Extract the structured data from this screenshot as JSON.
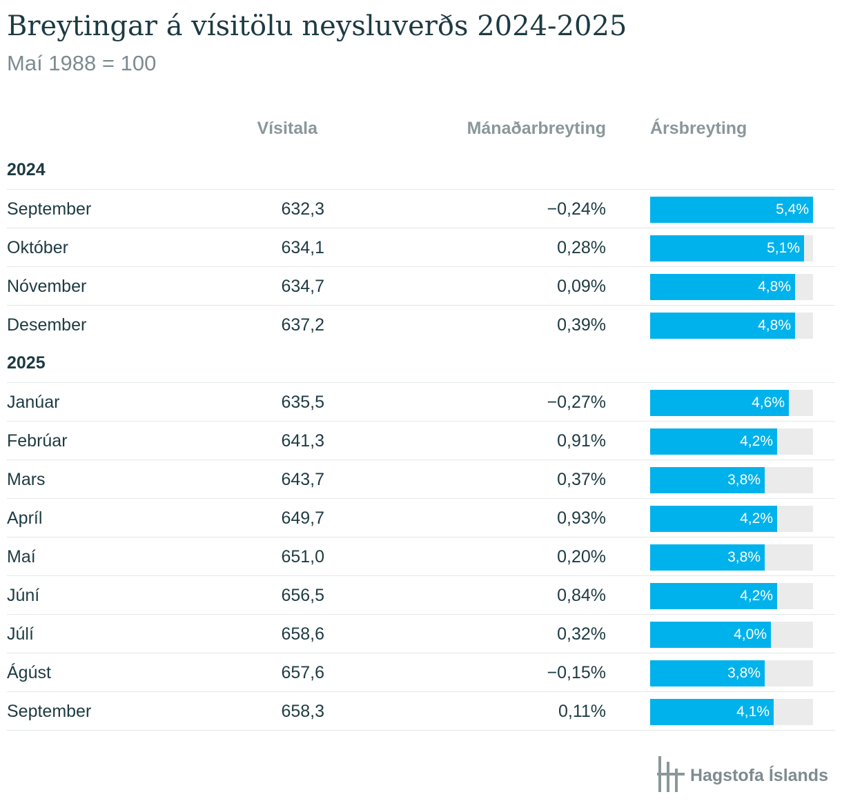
{
  "title": "Breytingar á vísitölu neysluverðs 2024-2025",
  "subtitle": "Maí 1988 = 100",
  "columns": {
    "index": "Vísitala",
    "monthly": "Mánaðarbreyting",
    "annual": "Ársbreyting"
  },
  "colors": {
    "bar": "#00b2ec",
    "track": "#ebebeb",
    "title": "#1d3a42",
    "muted": "#7d8b90"
  },
  "chart_data": {
    "type": "table",
    "annual_bar_max": 5.4,
    "groups": [
      {
        "year": "2024",
        "rows": [
          {
            "month": "September",
            "index": "632,3",
            "monthly": "−0,24%",
            "annual_label": "5,4%",
            "annual": 5.4
          },
          {
            "month": "Október",
            "index": "634,1",
            "monthly": "0,28%",
            "annual_label": "5,1%",
            "annual": 5.1
          },
          {
            "month": "Nóvember",
            "index": "634,7",
            "monthly": "0,09%",
            "annual_label": "4,8%",
            "annual": 4.8
          },
          {
            "month": "Desember",
            "index": "637,2",
            "monthly": "0,39%",
            "annual_label": "4,8%",
            "annual": 4.8
          }
        ]
      },
      {
        "year": "2025",
        "rows": [
          {
            "month": "Janúar",
            "index": "635,5",
            "monthly": "−0,27%",
            "annual_label": "4,6%",
            "annual": 4.6
          },
          {
            "month": "Febrúar",
            "index": "641,3",
            "monthly": "0,91%",
            "annual_label": "4,2%",
            "annual": 4.2
          },
          {
            "month": "Mars",
            "index": "643,7",
            "monthly": "0,37%",
            "annual_label": "3,8%",
            "annual": 3.8
          },
          {
            "month": "Apríl",
            "index": "649,7",
            "monthly": "0,93%",
            "annual_label": "4,2%",
            "annual": 4.2
          },
          {
            "month": "Maí",
            "index": "651,0",
            "monthly": "0,20%",
            "annual_label": "3,8%",
            "annual": 3.8
          },
          {
            "month": "Júní",
            "index": "656,5",
            "monthly": "0,84%",
            "annual_label": "4,2%",
            "annual": 4.2
          },
          {
            "month": "Júlí",
            "index": "658,6",
            "monthly": "0,32%",
            "annual_label": "4,0%",
            "annual": 4.0
          },
          {
            "month": "Ágúst",
            "index": "657,6",
            "monthly": "−0,15%",
            "annual_label": "3,8%",
            "annual": 3.8
          },
          {
            "month": "September",
            "index": "658,3",
            "monthly": "0,11%",
            "annual_label": "4,1%",
            "annual": 4.1
          }
        ]
      }
    ]
  },
  "footer": {
    "logo_icon": "hagstofa-logo-icon",
    "name": "Hagstofa Íslands"
  }
}
